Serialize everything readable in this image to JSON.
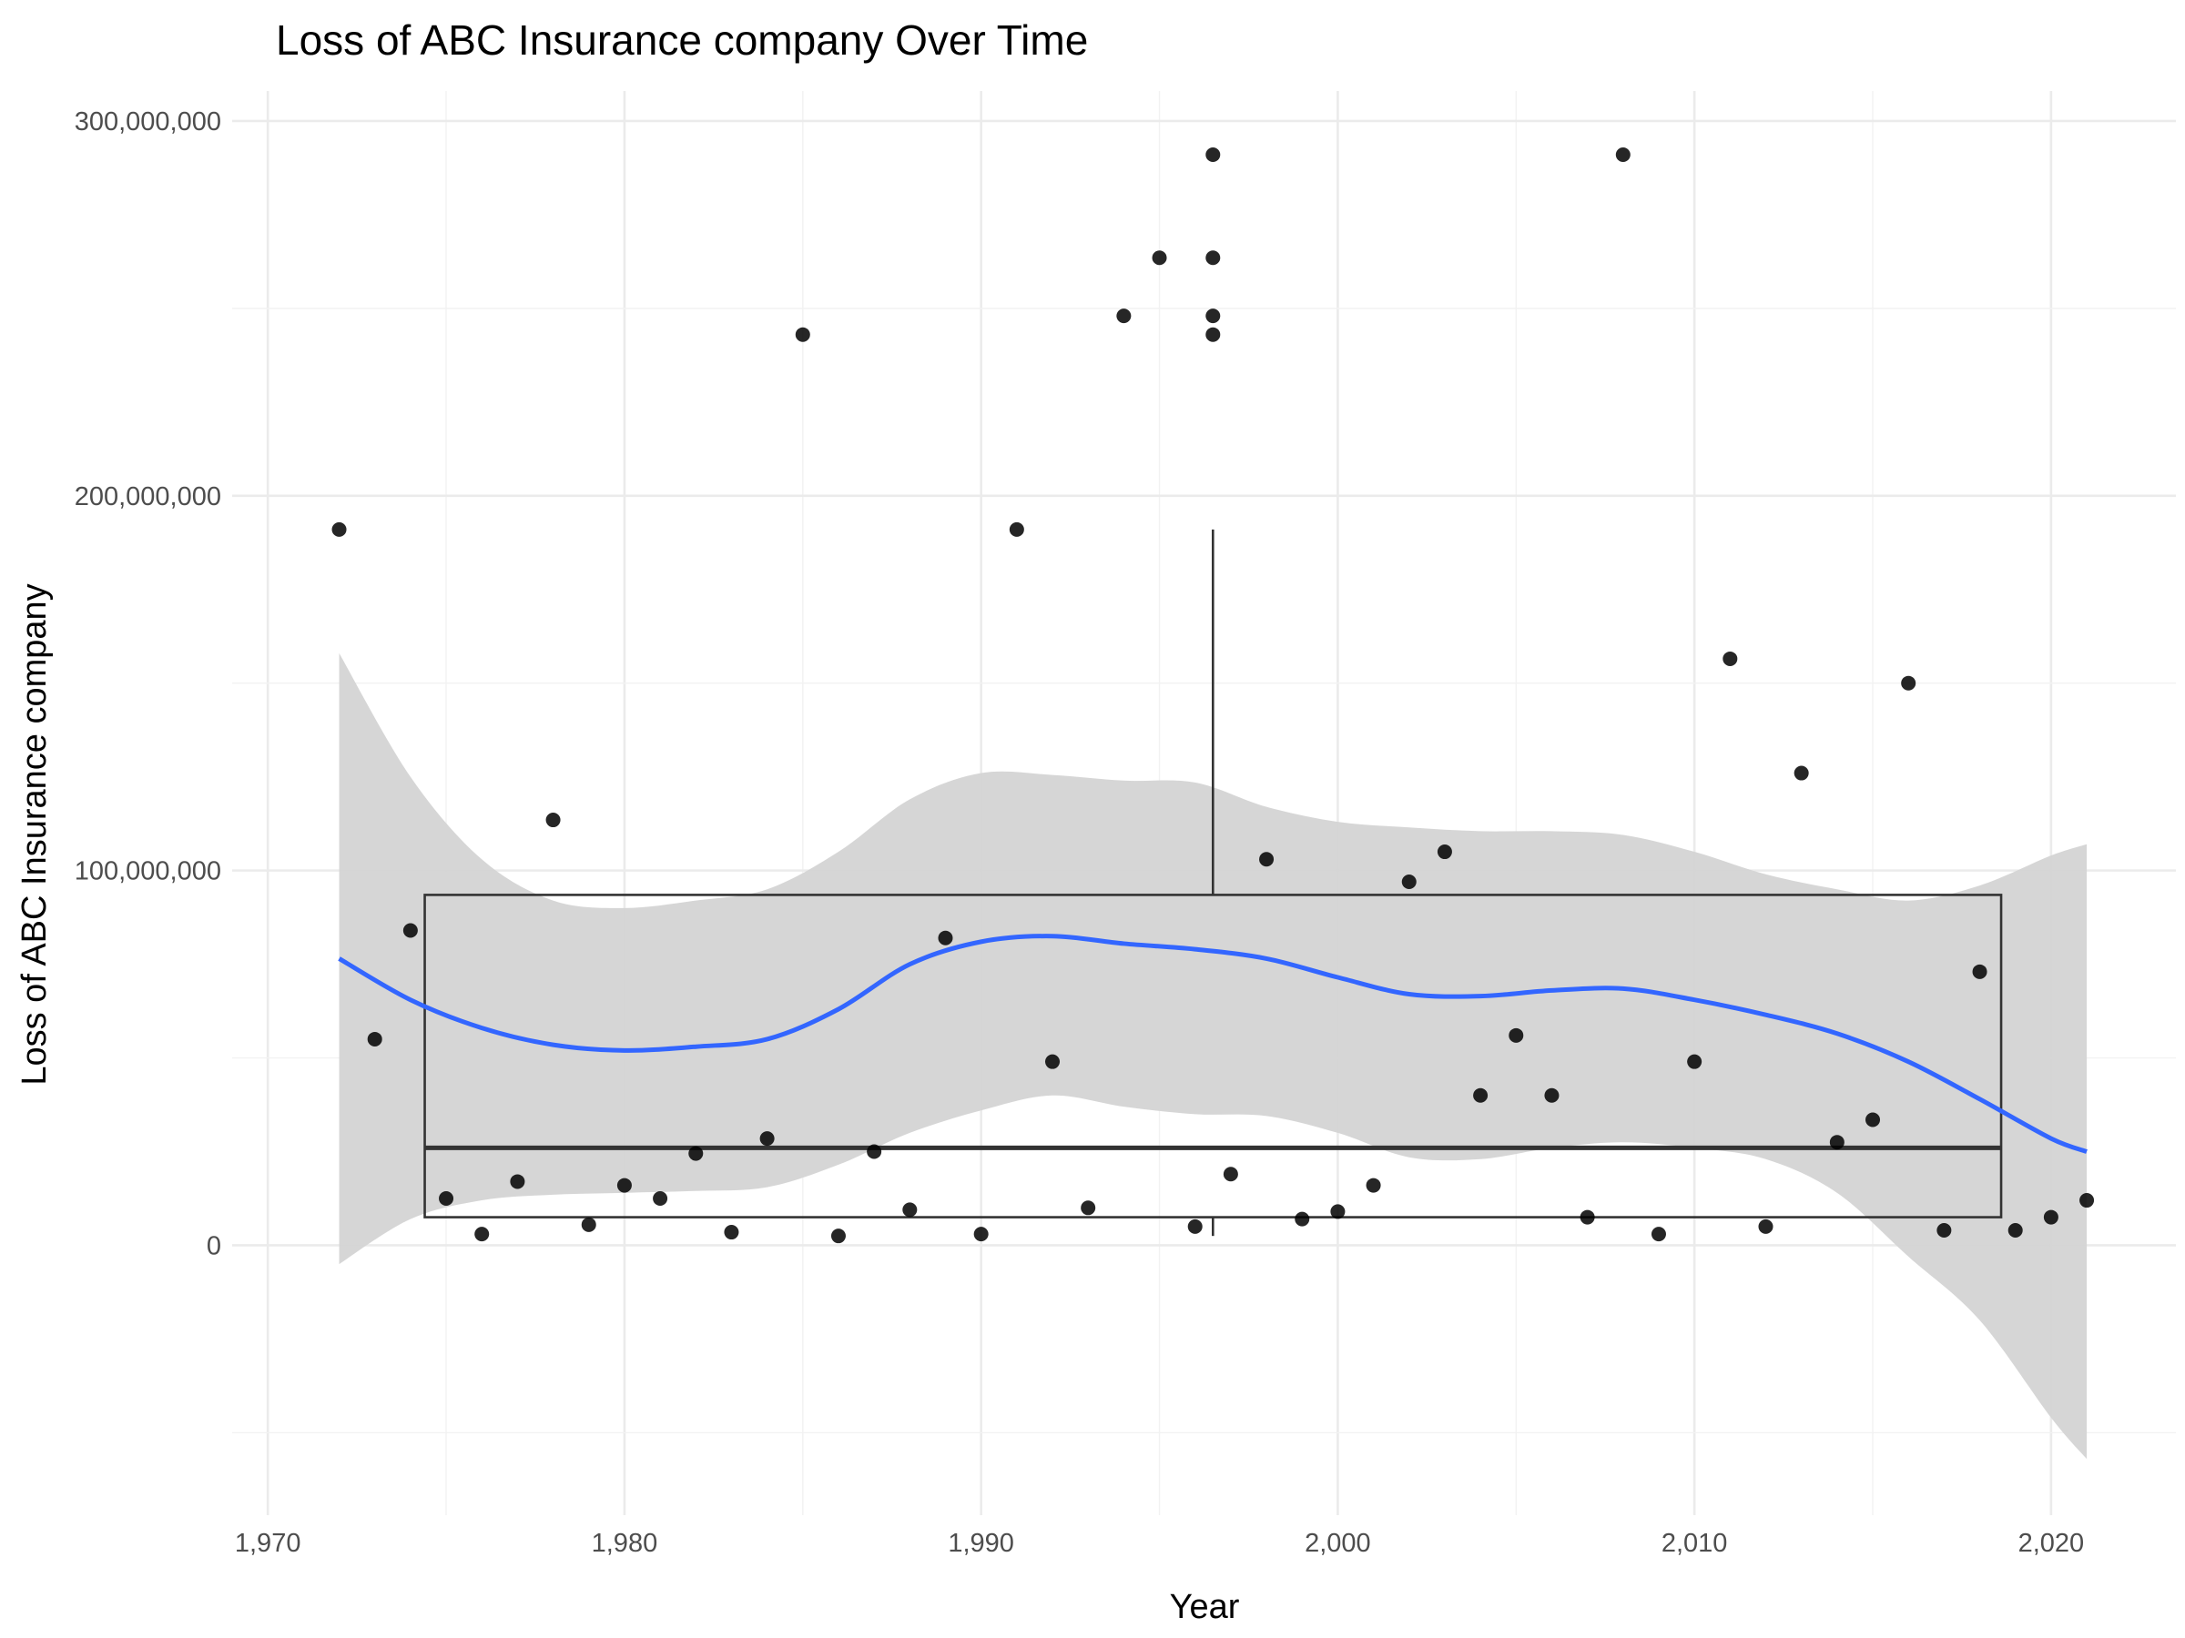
{
  "chart_data": {
    "type": "scatter",
    "title": "Loss of ABC Insurance company Over Time",
    "xlabel": "Year",
    "ylabel": "Loss of ABC Insurance company",
    "xlim": [
      1969,
      2023.5
    ],
    "ylim": [
      -72000000,
      308000000
    ],
    "x_ticks": [
      1970,
      1980,
      1990,
      2000,
      2010,
      2020
    ],
    "x_tick_labels": [
      "1,970",
      "1,980",
      "1,990",
      "2,000",
      "2,010",
      "2,020"
    ],
    "y_ticks": [
      0,
      100000000,
      200000000,
      300000000
    ],
    "y_tick_labels": [
      "0",
      "100,000,000",
      "200,000,000",
      "300,000,000"
    ],
    "grid": true,
    "points": [
      {
        "x": 1972,
        "y": 191000000
      },
      {
        "x": 1973,
        "y": 55000000
      },
      {
        "x": 1974,
        "y": 84000000
      },
      {
        "x": 1975,
        "y": 12500000
      },
      {
        "x": 1976,
        "y": 3000000
      },
      {
        "x": 1977,
        "y": 17000000
      },
      {
        "x": 1978,
        "y": 113500000
      },
      {
        "x": 1979,
        "y": 5500000
      },
      {
        "x": 1980,
        "y": 16000000
      },
      {
        "x": 1981,
        "y": 12500000
      },
      {
        "x": 1982,
        "y": 24500000
      },
      {
        "x": 1983,
        "y": 3500000
      },
      {
        "x": 1984,
        "y": 28500000
      },
      {
        "x": 1985,
        "y": 243000000
      },
      {
        "x": 1986,
        "y": 2500000
      },
      {
        "x": 1987,
        "y": 25000000
      },
      {
        "x": 1988,
        "y": 9500000
      },
      {
        "x": 1989,
        "y": 82000000
      },
      {
        "x": 1990,
        "y": 3000000
      },
      {
        "x": 1991,
        "y": 191000000
      },
      {
        "x": 1992,
        "y": 49000000
      },
      {
        "x": 1993,
        "y": 10000000
      },
      {
        "x": 1994,
        "y": 248000000
      },
      {
        "x": 1995,
        "y": 263500000
      },
      {
        "x": 1996,
        "y": 5000000
      },
      {
        "x": 1996.5,
        "y": 291000000
      },
      {
        "x": 1996.5,
        "y": 263500000
      },
      {
        "x": 1996.5,
        "y": 248000000
      },
      {
        "x": 1996.5,
        "y": 243000000
      },
      {
        "x": 1997,
        "y": 19000000
      },
      {
        "x": 1998,
        "y": 103000000
      },
      {
        "x": 1999,
        "y": 7000000
      },
      {
        "x": 2000,
        "y": 9000000
      },
      {
        "x": 2001,
        "y": 16000000
      },
      {
        "x": 2002,
        "y": 97000000
      },
      {
        "x": 2003,
        "y": 105000000
      },
      {
        "x": 2004,
        "y": 40000000
      },
      {
        "x": 2005,
        "y": 56000000
      },
      {
        "x": 2006,
        "y": 40000000
      },
      {
        "x": 2007,
        "y": 7500000
      },
      {
        "x": 2008,
        "y": 291000000
      },
      {
        "x": 2009,
        "y": 3000000
      },
      {
        "x": 2010,
        "y": 49000000
      },
      {
        "x": 2011,
        "y": 156500000
      },
      {
        "x": 2012,
        "y": 5000000
      },
      {
        "x": 2013,
        "y": 126000000
      },
      {
        "x": 2014,
        "y": 27500000
      },
      {
        "x": 2015,
        "y": 33500000
      },
      {
        "x": 2016,
        "y": 150000000
      },
      {
        "x": 2017,
        "y": 4000000
      },
      {
        "x": 2018,
        "y": 73000000
      },
      {
        "x": 2019,
        "y": 4000000
      },
      {
        "x": 2020,
        "y": 7500000
      },
      {
        "x": 2021,
        "y": 12000000
      }
    ],
    "boxplot": {
      "x_center": 1996.5,
      "x_range": [
        1974.4,
        2018.6
      ],
      "q1": 7500000,
      "median": 26000000,
      "q3": 93500000,
      "whisker_low": 2500000,
      "whisker_high": 191000000
    },
    "smooth": {
      "method": "loess",
      "line_color": "#3366ff",
      "band_color": "#d4d4d4",
      "x": [
        1972,
        1974,
        1976,
        1978,
        1980,
        1982,
        1984,
        1986,
        1988,
        1990,
        1992,
        1994,
        1996,
        1998,
        2000,
        2002,
        2004,
        2006,
        2008,
        2010,
        2012,
        2014,
        2016,
        2018,
        2020,
        2021
      ],
      "y": [
        76500000,
        65500000,
        58000000,
        53500000,
        52000000,
        53000000,
        55000000,
        63000000,
        75000000,
        81000000,
        82500000,
        80500000,
        79000000,
        76500000,
        71500000,
        67000000,
        66500000,
        68000000,
        68500000,
        65500000,
        61500000,
        56500000,
        49000000,
        39000000,
        28500000,
        25000000
      ],
      "lower": [
        -5000000,
        7000000,
        12000000,
        13500000,
        14000000,
        14500000,
        15500000,
        21500000,
        30000000,
        36000000,
        40000000,
        37000000,
        35000000,
        34500000,
        30000000,
        23500000,
        23000000,
        26000000,
        27500000,
        26000000,
        23000000,
        14000000,
        -3000000,
        -20000000,
        -46000000,
        -57000000
      ],
      "upper": [
        158000000,
        125000000,
        103000000,
        92000000,
        90000000,
        92000000,
        95000000,
        105000000,
        119000000,
        126000000,
        125500000,
        124000000,
        123500000,
        117000000,
        113000000,
        111500000,
        110500000,
        110500000,
        109500000,
        105000000,
        99000000,
        95000000,
        92000000,
        96000000,
        104000000,
        107000000
      ]
    },
    "colors": {
      "point": "#000000",
      "box_outline": "#333333"
    }
  }
}
